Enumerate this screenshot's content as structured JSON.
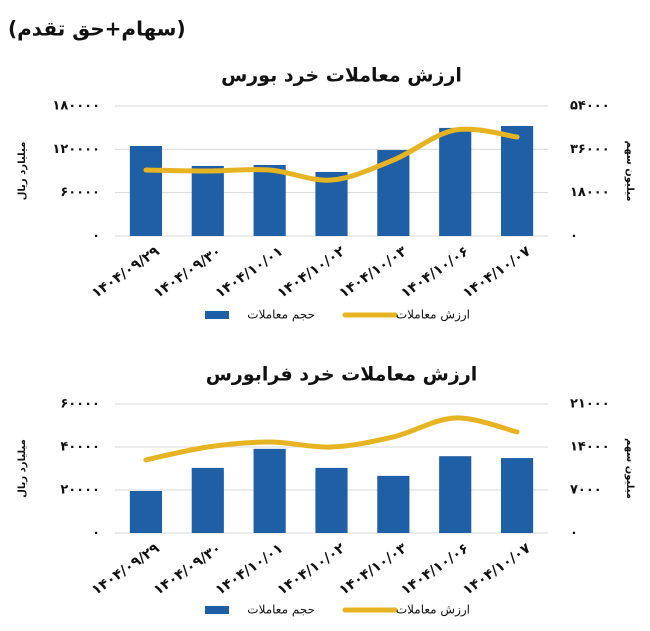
{
  "heading": "(سهام+حق تقدم)",
  "chart_data": [
    {
      "type": "combo",
      "title": "ارزش معاملات خرد بورس",
      "categories": [
        "۱۴۰۴/۰۹/۲۹",
        "۱۴۰۴/۰۹/۳۰",
        "۱۴۰۴/۱۰/۰۱",
        "۱۴۰۴/۱۰/۰۲",
        "۱۴۰۴/۱۰/۰۳",
        "۱۴۰۴/۱۰/۰۶",
        "۱۴۰۴/۱۰/۰۷"
      ],
      "series": [
        {
          "name": "حجم معاملات",
          "type": "bar",
          "axis": "y2",
          "color": "#1f5fa6",
          "values": [
            37400,
            29100,
            29500,
            26600,
            35700,
            44900,
            45700
          ]
        },
        {
          "name": "ارزش معاملات",
          "type": "line",
          "color": "#e6b422",
          "values": [
            91400,
            90000,
            91400,
            77500,
            105200,
            146800,
            137100
          ]
        }
      ],
      "ylabel": "میلیارد ریال",
      "y2label": "میلیون سهم",
      "ylim": [
        0,
        180000
      ],
      "yticks": [
        {
          "value": 0,
          "label": "۰"
        },
        {
          "value": 60000,
          "label": "۶۰۰۰۰"
        },
        {
          "value": 120000,
          "label": "۱۲۰۰۰۰"
        },
        {
          "value": 180000,
          "label": "۱۸۰۰۰۰"
        }
      ],
      "y2lim": [
        0,
        54000
      ],
      "y2ticks": [
        {
          "value": 0,
          "label": "۰"
        },
        {
          "value": 18000,
          "label": "۱۸۰۰۰"
        },
        {
          "value": 36000,
          "label": "۳۶۰۰۰"
        },
        {
          "value": 54000,
          "label": "۵۴۰۰۰"
        }
      ],
      "grid": true
    },
    {
      "type": "combo",
      "title": "ارزش معاملات خرد فرابورس",
      "categories": [
        "۱۴۰۴/۰۹/۲۹",
        "۱۴۰۴/۰۹/۳۰",
        "۱۴۰۴/۱۰/۰۱",
        "۱۴۰۴/۱۰/۰۲",
        "۱۴۰۴/۱۰/۰۳",
        "۱۴۰۴/۱۰/۰۶",
        "۱۴۰۴/۱۰/۰۷"
      ],
      "series": [
        {
          "name": "حجم معاملات",
          "type": "bar",
          "axis": "y2",
          "color": "#1f5fa6",
          "values": [
            6840,
            10600,
            13700,
            10600,
            9300,
            12500,
            12200
          ]
        },
        {
          "name": "ارزش معاملات",
          "type": "line",
          "color": "#e6b422",
          "values": [
            34000,
            40000,
            42300,
            40000,
            44700,
            53500,
            47000
          ]
        }
      ],
      "ylabel": "میلیارد ریال",
      "y2label": "میلیون سهم",
      "ylim": [
        0,
        60000
      ],
      "yticks": [
        {
          "value": 0,
          "label": "۰"
        },
        {
          "value": 20000,
          "label": "۲۰۰۰۰"
        },
        {
          "value": 40000,
          "label": "۴۰۰۰۰"
        },
        {
          "value": 60000,
          "label": "۶۰۰۰۰"
        }
      ],
      "y2lim": [
        0,
        21000
      ],
      "y2ticks": [
        {
          "value": 0,
          "label": "۰"
        },
        {
          "value": 7000,
          "label": "۷۰۰۰"
        },
        {
          "value": 14000,
          "label": "۱۴۰۰۰"
        },
        {
          "value": 21000,
          "label": "۲۱۰۰۰"
        }
      ],
      "grid": true
    }
  ]
}
